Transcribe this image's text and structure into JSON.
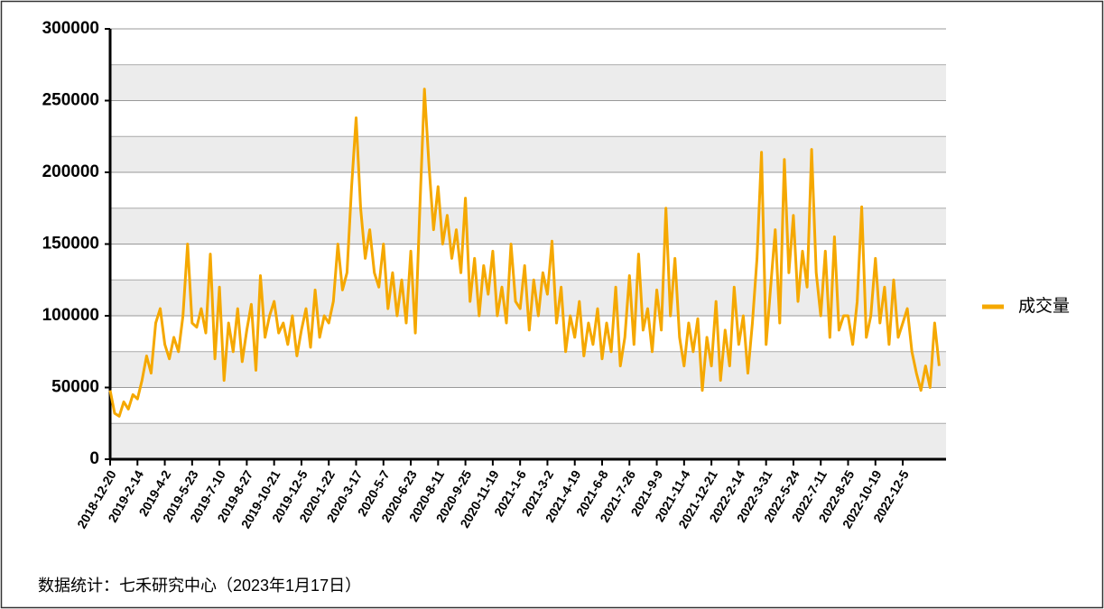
{
  "chart_data": {
    "type": "line",
    "categories": [
      "2018-12-20",
      null,
      null,
      null,
      null,
      null,
      "2019-2-14",
      null,
      null,
      null,
      null,
      null,
      "2019-4-2",
      null,
      null,
      null,
      null,
      null,
      "2019-5-23",
      null,
      null,
      null,
      null,
      null,
      "2019-7-10",
      null,
      null,
      null,
      null,
      null,
      "2019-8-27",
      null,
      null,
      null,
      null,
      null,
      "2019-10-21",
      null,
      null,
      null,
      null,
      null,
      "2019-12-5",
      null,
      null,
      null,
      null,
      null,
      "2020-1-22",
      null,
      null,
      null,
      null,
      null,
      "2020-3-17",
      null,
      null,
      null,
      null,
      null,
      "2020-5-7",
      null,
      null,
      null,
      null,
      null,
      "2020-6-23",
      null,
      null,
      null,
      null,
      null,
      "2020-8-11",
      null,
      null,
      null,
      null,
      null,
      "2020-9-25",
      null,
      null,
      null,
      null,
      null,
      "2020-11-19",
      null,
      null,
      null,
      null,
      null,
      "2021-1-6",
      null,
      null,
      null,
      null,
      null,
      "2021-3-2",
      null,
      null,
      null,
      null,
      null,
      "2021-4-19",
      null,
      null,
      null,
      null,
      null,
      "2021-6-8",
      null,
      null,
      null,
      null,
      null,
      "2021-7-26",
      null,
      null,
      null,
      null,
      null,
      "2021-9-9",
      null,
      null,
      null,
      null,
      null,
      "2021-11-4",
      null,
      null,
      null,
      null,
      null,
      "2021-12-21",
      null,
      null,
      null,
      null,
      null,
      "2022-2-14",
      null,
      null,
      null,
      null,
      null,
      "2022-3-31",
      null,
      null,
      null,
      null,
      null,
      "2022-5-24",
      null,
      null,
      null,
      null,
      null,
      "2022-7-11",
      null,
      null,
      null,
      null,
      null,
      "2022-8-25",
      null,
      null,
      null,
      null,
      null,
      "2022-10-19",
      null,
      null,
      null,
      null,
      null,
      "2022-12-5",
      null,
      null,
      null,
      null,
      null,
      null,
      null,
      null
    ],
    "series": [
      {
        "name": "成交量",
        "color": "#f5a800",
        "values": [
          48000,
          32000,
          30000,
          40000,
          35000,
          45000,
          42000,
          55000,
          72000,
          60000,
          95000,
          105000,
          80000,
          70000,
          85000,
          75000,
          100000,
          150000,
          95000,
          92000,
          105000,
          88000,
          143000,
          70000,
          120000,
          55000,
          95000,
          75000,
          105000,
          68000,
          90000,
          108000,
          62000,
          128000,
          85000,
          100000,
          110000,
          88000,
          95000,
          80000,
          100000,
          72000,
          90000,
          105000,
          78000,
          118000,
          85000,
          100000,
          95000,
          110000,
          150000,
          118000,
          130000,
          190000,
          238000,
          175000,
          140000,
          160000,
          130000,
          120000,
          150000,
          105000,
          130000,
          100000,
          125000,
          95000,
          145000,
          88000,
          175000,
          258000,
          205000,
          160000,
          190000,
          150000,
          170000,
          140000,
          160000,
          130000,
          182000,
          110000,
          140000,
          100000,
          135000,
          115000,
          145000,
          100000,
          120000,
          95000,
          150000,
          110000,
          105000,
          135000,
          90000,
          125000,
          100000,
          130000,
          115000,
          152000,
          95000,
          120000,
          75000,
          100000,
          85000,
          110000,
          72000,
          95000,
          80000,
          105000,
          70000,
          95000,
          75000,
          120000,
          65000,
          85000,
          128000,
          80000,
          143000,
          90000,
          105000,
          75000,
          118000,
          90000,
          175000,
          100000,
          140000,
          85000,
          65000,
          95000,
          75000,
          98000,
          48000,
          85000,
          65000,
          110000,
          55000,
          90000,
          65000,
          120000,
          80000,
          100000,
          60000,
          95000,
          140000,
          214000,
          80000,
          120000,
          160000,
          95000,
          209000,
          130000,
          170000,
          110000,
          145000,
          120000,
          216000,
          130000,
          100000,
          145000,
          85000,
          155000,
          90000,
          100000,
          100000,
          80000,
          110000,
          176000,
          85000,
          100000,
          140000,
          95000,
          120000,
          80000,
          125000,
          85000,
          95000,
          105000,
          75000,
          60000,
          48000,
          65000,
          50000,
          95000,
          65000
        ]
      }
    ],
    "ylim": [
      0,
      300000
    ],
    "yticks": [
      0,
      50000,
      100000,
      150000,
      200000,
      250000,
      300000
    ],
    "grid": true,
    "legend": "right",
    "footnote": "数据统计：七禾研究中心（2023年1月17日）"
  }
}
